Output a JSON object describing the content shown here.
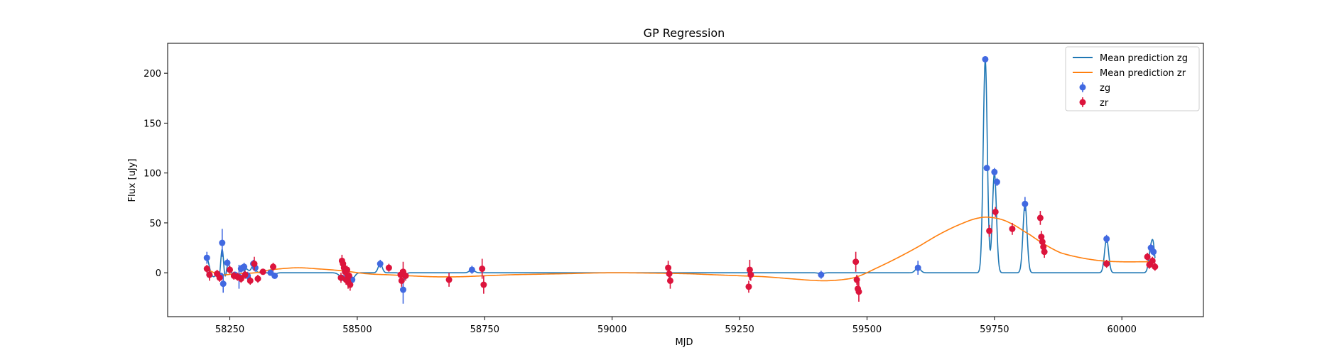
{
  "chart_data": {
    "type": "scatter",
    "title": "GP Regression",
    "xlabel": "MJD",
    "ylabel": "Flux [uJy]",
    "xlim": [
      58128,
      60160
    ],
    "ylim": [
      -44,
      230
    ],
    "xticks": [
      58250,
      58500,
      58750,
      59000,
      59250,
      59500,
      59750,
      60000
    ],
    "yticks": [
      0,
      50,
      100,
      150,
      200
    ],
    "grid": false,
    "legend_position": "top-right",
    "colors": {
      "zg_line": "#1f77b4",
      "zr_line": "#ff7f0e",
      "zg_points": "#4169e1",
      "zr_points": "#dc143c"
    },
    "legend": [
      {
        "label": "Mean prediction zg",
        "kind": "line",
        "color": "#1f77b4"
      },
      {
        "label": "Mean prediction zr",
        "kind": "line",
        "color": "#ff7f0e"
      },
      {
        "label": "zg",
        "kind": "point",
        "color": "#4169e1"
      },
      {
        "label": "zr",
        "kind": "point",
        "color": "#dc143c"
      }
    ],
    "lines": [
      {
        "name": "Mean prediction zg",
        "color": "#1f77b4",
        "baseline": 0,
        "peaks": [
          [
            58205,
            14,
            4
          ],
          [
            58218,
            -4,
            4
          ],
          [
            58230,
            -8,
            3
          ],
          [
            58235,
            28,
            3
          ],
          [
            58240,
            -10,
            3
          ],
          [
            58246,
            10,
            3
          ],
          [
            58262,
            -3,
            4
          ],
          [
            58272,
            -4,
            4
          ],
          [
            58282,
            4,
            4
          ],
          [
            58296,
            7,
            4
          ],
          [
            58335,
            -2,
            5
          ],
          [
            58470,
            -4,
            6
          ],
          [
            58490,
            -6,
            5
          ],
          [
            58545,
            9,
            4
          ],
          [
            58590,
            -8,
            4
          ],
          [
            58725,
            3,
            5
          ],
          [
            59410,
            -1,
            5
          ],
          [
            59600,
            5,
            5
          ],
          [
            59732,
            213,
            4
          ],
          [
            59750,
            100,
            4
          ],
          [
            59810,
            69,
            4
          ],
          [
            59970,
            34,
            4
          ],
          [
            60057,
            24,
            4
          ],
          [
            60062,
            19,
            3
          ]
        ]
      },
      {
        "name": "Mean prediction zr",
        "color": "#ff7f0e",
        "x": [
          58205,
          58230,
          58260,
          58300,
          58330,
          58380,
          58420,
          58470,
          58520,
          58560,
          58600,
          58650,
          58700,
          58750,
          58800,
          58900,
          59000,
          59100,
          59150,
          59200,
          59250,
          59300,
          59350,
          59410,
          59450,
          59480,
          59520,
          59560,
          59600,
          59640,
          59680,
          59720,
          59750,
          59780,
          59820,
          59850,
          59880,
          59920,
          59960,
          60000,
          60040,
          60065
        ],
        "y": [
          3,
          -2,
          -1,
          0,
          3,
          5,
          4,
          2,
          -1,
          -2,
          -3,
          -4,
          -4,
          -3,
          -2,
          -1,
          0,
          -0.5,
          -1,
          -2,
          -3,
          -4,
          -6,
          -8,
          -7,
          -4,
          5,
          15,
          26,
          38,
          48,
          55,
          55,
          50,
          38,
          28,
          20,
          15,
          12,
          11,
          11,
          11
        ]
      }
    ],
    "series": [
      {
        "name": "zg",
        "color": "#4169e1",
        "points": [
          [
            58205,
            15,
            6
          ],
          [
            58210,
            -2,
            4
          ],
          [
            58232,
            -3,
            3
          ],
          [
            58235,
            30,
            14
          ],
          [
            58237,
            -11,
            9
          ],
          [
            58245,
            10,
            4
          ],
          [
            58260,
            -2,
            3
          ],
          [
            58268,
            -4,
            12
          ],
          [
            58272,
            4,
            4
          ],
          [
            58278,
            6,
            4
          ],
          [
            58285,
            -3,
            4
          ],
          [
            58296,
            9,
            4
          ],
          [
            58300,
            5,
            4
          ],
          [
            58330,
            0,
            3
          ],
          [
            58338,
            -3,
            3
          ],
          [
            58470,
            -5,
            3
          ],
          [
            58490,
            -7,
            3
          ],
          [
            58545,
            9,
            4
          ],
          [
            58590,
            -17,
            14
          ],
          [
            58725,
            3,
            4
          ],
          [
            59410,
            -2,
            4
          ],
          [
            59600,
            5,
            7
          ],
          [
            59732,
            214,
            3
          ],
          [
            59735,
            105,
            3
          ],
          [
            59750,
            101,
            4
          ],
          [
            59755,
            91,
            4
          ],
          [
            59810,
            69,
            7
          ],
          [
            59970,
            34,
            4
          ],
          [
            60057,
            25,
            4
          ],
          [
            60062,
            21,
            4
          ]
        ]
      },
      {
        "name": "zr",
        "color": "#dc143c",
        "points": [
          [
            58205,
            4,
            4
          ],
          [
            58210,
            -2,
            6
          ],
          [
            58225,
            -1,
            4
          ],
          [
            58230,
            -5,
            4
          ],
          [
            58250,
            3,
            4
          ],
          [
            58258,
            -3,
            4
          ],
          [
            58265,
            -4,
            4
          ],
          [
            58272,
            -6,
            4
          ],
          [
            58280,
            -2,
            4
          ],
          [
            58290,
            -8,
            4
          ],
          [
            58298,
            9,
            7
          ],
          [
            58305,
            -6,
            4
          ],
          [
            58315,
            1,
            3
          ],
          [
            58335,
            6,
            4
          ],
          [
            58470,
            12,
            6
          ],
          [
            58472,
            9,
            5
          ],
          [
            58474,
            5,
            5
          ],
          [
            58476,
            1,
            5
          ],
          [
            58468,
            -5,
            5
          ],
          [
            58478,
            -7,
            5
          ],
          [
            58480,
            3,
            4
          ],
          [
            58482,
            -9,
            7
          ],
          [
            58484,
            -3,
            5
          ],
          [
            58486,
            -12,
            6
          ],
          [
            58562,
            5,
            4
          ],
          [
            58585,
            -2,
            5
          ],
          [
            58587,
            -8,
            6
          ],
          [
            58590,
            1,
            10
          ],
          [
            58595,
            -3,
            5
          ],
          [
            58680,
            -7,
            7
          ],
          [
            58745,
            4,
            10
          ],
          [
            58748,
            -12,
            9
          ],
          [
            59110,
            5,
            7
          ],
          [
            59112,
            -1,
            6
          ],
          [
            59114,
            -8,
            8
          ],
          [
            59270,
            3,
            10
          ],
          [
            59272,
            -2,
            6
          ],
          [
            59268,
            -14,
            6
          ],
          [
            59478,
            11,
            10
          ],
          [
            59480,
            -7,
            5
          ],
          [
            59482,
            -16,
            6
          ],
          [
            59484,
            -19,
            10
          ],
          [
            59740,
            42,
            6
          ],
          [
            59752,
            61,
            5
          ],
          [
            59785,
            44,
            6
          ],
          [
            59840,
            55,
            7
          ],
          [
            59842,
            36,
            6
          ],
          [
            59844,
            31,
            6
          ],
          [
            59846,
            26,
            6
          ],
          [
            59848,
            21,
            6
          ],
          [
            59970,
            9,
            4
          ],
          [
            60050,
            16,
            4
          ],
          [
            60054,
            8,
            4
          ],
          [
            60060,
            12,
            4
          ],
          [
            60065,
            6,
            4
          ]
        ]
      }
    ]
  }
}
